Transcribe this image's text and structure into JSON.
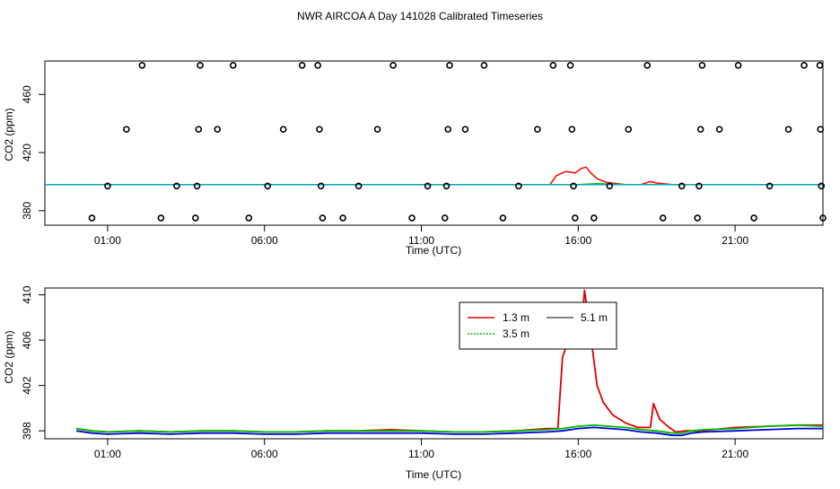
{
  "title": "NWR AIRCOA A  Day 141028  Calibrated Timeseries",
  "chart_data": [
    {
      "type": "scatter",
      "xlabel": "Time (UTC)",
      "ylabel": "CO2 (ppm)",
      "xlim": [
        -1.0,
        23.8
      ],
      "ylim": [
        370.0,
        483.0
      ],
      "x_ticks": [
        1,
        6,
        11,
        16,
        21
      ],
      "x_tick_labels": [
        "01:00",
        "06:00",
        "11:00",
        "16:00",
        "21:00"
      ],
      "y_ticks": [
        380,
        420,
        460
      ],
      "y_tick_labels": [
        "380",
        "420",
        "460"
      ],
      "points": [
        {
          "x": 0.5,
          "y": 375
        },
        {
          "x": 1.0,
          "y": 397
        },
        {
          "x": 1.6,
          "y": 436
        },
        {
          "x": 2.1,
          "y": 480
        },
        {
          "x": 2.7,
          "y": 375
        },
        {
          "x": 3.2,
          "y": 397
        },
        {
          "x": 3.8,
          "y": 375
        },
        {
          "x": 3.85,
          "y": 397
        },
        {
          "x": 3.9,
          "y": 436
        },
        {
          "x": 3.95,
          "y": 480
        },
        {
          "x": 4.5,
          "y": 436
        },
        {
          "x": 5.0,
          "y": 480
        },
        {
          "x": 5.5,
          "y": 375
        },
        {
          "x": 6.1,
          "y": 397
        },
        {
          "x": 6.6,
          "y": 436
        },
        {
          "x": 7.2,
          "y": 480
        },
        {
          "x": 7.7,
          "y": 480
        },
        {
          "x": 7.75,
          "y": 436
        },
        {
          "x": 7.8,
          "y": 397
        },
        {
          "x": 7.85,
          "y": 375
        },
        {
          "x": 8.5,
          "y": 375
        },
        {
          "x": 9.0,
          "y": 397
        },
        {
          "x": 9.6,
          "y": 436
        },
        {
          "x": 10.1,
          "y": 480
        },
        {
          "x": 10.7,
          "y": 375
        },
        {
          "x": 11.2,
          "y": 397
        },
        {
          "x": 11.75,
          "y": 375
        },
        {
          "x": 11.8,
          "y": 397
        },
        {
          "x": 11.85,
          "y": 436
        },
        {
          "x": 11.9,
          "y": 480
        },
        {
          "x": 12.4,
          "y": 436
        },
        {
          "x": 13.0,
          "y": 480
        },
        {
          "x": 13.6,
          "y": 375
        },
        {
          "x": 14.1,
          "y": 397
        },
        {
          "x": 14.7,
          "y": 436
        },
        {
          "x": 15.2,
          "y": 480
        },
        {
          "x": 15.75,
          "y": 480
        },
        {
          "x": 15.8,
          "y": 436
        },
        {
          "x": 15.85,
          "y": 397
        },
        {
          "x": 15.9,
          "y": 375
        },
        {
          "x": 16.5,
          "y": 375
        },
        {
          "x": 17.0,
          "y": 397
        },
        {
          "x": 17.6,
          "y": 436
        },
        {
          "x": 18.2,
          "y": 480
        },
        {
          "x": 18.7,
          "y": 375
        },
        {
          "x": 19.3,
          "y": 397
        },
        {
          "x": 19.8,
          "y": 375
        },
        {
          "x": 19.85,
          "y": 397
        },
        {
          "x": 19.9,
          "y": 436
        },
        {
          "x": 19.95,
          "y": 480
        },
        {
          "x": 20.5,
          "y": 436
        },
        {
          "x": 21.1,
          "y": 480
        },
        {
          "x": 21.6,
          "y": 375
        },
        {
          "x": 22.1,
          "y": 397
        },
        {
          "x": 22.7,
          "y": 436
        },
        {
          "x": 23.2,
          "y": 480
        },
        {
          "x": 23.7,
          "y": 480
        },
        {
          "x": 23.72,
          "y": 436
        },
        {
          "x": 23.75,
          "y": 397
        },
        {
          "x": 23.8,
          "y": 375
        }
      ],
      "series": [
        {
          "color": "#ff0000",
          "x": [
            -1.0,
            15.1,
            15.3,
            15.6,
            15.9,
            16.1,
            16.25,
            16.4,
            16.6,
            16.9,
            17.5,
            18.0,
            18.3,
            18.5,
            19.0,
            23.8
          ],
          "values": [
            398.0,
            398.0,
            404.0,
            407.0,
            406.0,
            409.0,
            410.0,
            406.0,
            402.0,
            399.5,
            398.0,
            398.0,
            400.0,
            399.0,
            398.0,
            398.0
          ]
        },
        {
          "color": "#00b000",
          "x": [
            -1.0,
            16.0,
            16.6,
            17.5,
            23.8
          ],
          "values": [
            398.0,
            398.0,
            398.5,
            398.0,
            398.0
          ]
        },
        {
          "color": "#0000ff",
          "x": [
            -1.0,
            23.8
          ],
          "values": [
            398.0,
            398.0
          ]
        },
        {
          "color": "#00aaaa",
          "x": [
            -1.0,
            23.8
          ],
          "values": [
            398.0,
            398.0
          ]
        }
      ]
    },
    {
      "type": "line",
      "xlabel": "Time (UTC)",
      "ylabel": "CO2 (ppm)",
      "xlim": [
        -1.0,
        23.8
      ],
      "ylim": [
        397.3,
        410.6
      ],
      "x_ticks": [
        1,
        6,
        11,
        16,
        21
      ],
      "x_tick_labels": [
        "01:00",
        "06:00",
        "11:00",
        "16:00",
        "21:00"
      ],
      "y_ticks": [
        398,
        402,
        406,
        410
      ],
      "y_tick_labels": [
        "398",
        "402",
        "406",
        "410"
      ],
      "legend": [
        "1.3 m",
        "5.1 m",
        "3.5 m"
      ],
      "legend_position": "top-center",
      "series": [
        {
          "name": "1.3 m",
          "color": "#dd0000",
          "x": [
            0.0,
            0.5,
            1.0,
            2.0,
            3.0,
            4.0,
            5.0,
            6.0,
            7.0,
            8.0,
            9.0,
            10.0,
            11.0,
            12.0,
            13.0,
            14.0,
            15.0,
            15.3,
            15.35,
            15.5,
            15.7,
            15.9,
            16.1,
            16.2,
            16.4,
            16.6,
            16.8,
            17.1,
            17.5,
            17.9,
            18.1,
            18.3,
            18.4,
            18.6,
            18.9,
            19.1,
            19.4,
            19.8,
            20.3,
            21.0,
            22.0,
            23.0,
            23.8
          ],
          "values": [
            398.2,
            398.0,
            397.9,
            398.0,
            397.9,
            398.0,
            398.0,
            397.9,
            397.9,
            398.0,
            398.0,
            398.1,
            398.0,
            397.9,
            397.9,
            398.0,
            398.2,
            398.2,
            398.2,
            404.5,
            406.1,
            406.4,
            406.7,
            410.4,
            406.4,
            402.0,
            400.5,
            399.4,
            398.7,
            398.3,
            398.3,
            398.3,
            400.4,
            399.0,
            398.3,
            397.9,
            398.0,
            398.0,
            398.1,
            398.3,
            398.4,
            398.5,
            398.5
          ]
        },
        {
          "name": "5.1 m",
          "color": "#0000dd",
          "x": [
            0.0,
            0.5,
            1.0,
            2.0,
            3.0,
            4.0,
            5.0,
            6.0,
            7.0,
            8.0,
            9.0,
            10.0,
            11.0,
            12.0,
            13.0,
            14.0,
            15.0,
            15.5,
            16.0,
            16.5,
            17.0,
            17.5,
            18.0,
            18.5,
            19.0,
            19.3,
            19.6,
            20.0,
            21.0,
            22.0,
            23.0,
            23.8
          ],
          "values": [
            398.0,
            397.8,
            397.7,
            397.8,
            397.7,
            397.8,
            397.8,
            397.7,
            397.7,
            397.8,
            397.8,
            397.8,
            397.8,
            397.7,
            397.7,
            397.8,
            397.9,
            398.0,
            398.2,
            398.3,
            398.2,
            398.1,
            397.9,
            397.8,
            397.6,
            397.6,
            397.8,
            397.9,
            398.0,
            398.1,
            398.2,
            398.2
          ]
        },
        {
          "name": "3.5 m",
          "color": "#00bb00",
          "x": [
            0.0,
            0.5,
            1.0,
            2.0,
            3.0,
            4.0,
            5.0,
            6.0,
            7.0,
            8.0,
            9.0,
            10.0,
            11.0,
            12.0,
            13.0,
            14.0,
            15.0,
            15.5,
            16.0,
            16.5,
            17.0,
            17.5,
            18.0,
            18.5,
            19.0,
            19.3,
            19.6,
            20.0,
            21.0,
            22.0,
            23.0,
            23.8
          ],
          "values": [
            398.2,
            398.0,
            397.9,
            398.0,
            397.9,
            398.0,
            398.0,
            397.9,
            397.9,
            398.0,
            398.0,
            398.0,
            398.0,
            397.9,
            397.9,
            398.0,
            398.1,
            398.2,
            398.4,
            398.5,
            398.4,
            398.3,
            398.1,
            398.0,
            397.8,
            397.8,
            398.0,
            398.1,
            398.2,
            398.4,
            398.5,
            398.4
          ]
        }
      ]
    }
  ]
}
